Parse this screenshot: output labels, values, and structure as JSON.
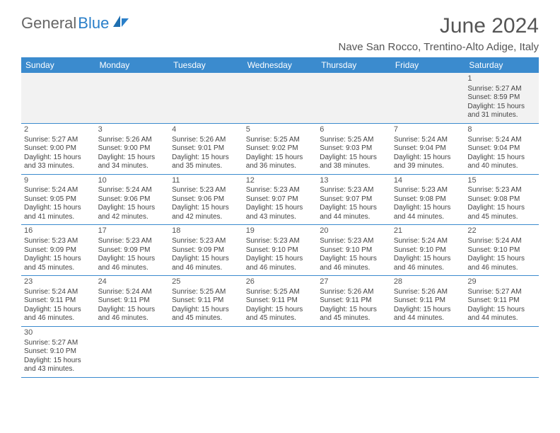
{
  "brand": {
    "part1": "General",
    "part2": "Blue"
  },
  "title": {
    "month": "June 2024",
    "location": "Nave San Rocco, Trentino-Alto Adige, Italy"
  },
  "colors": {
    "headerBg": "#3b8bce",
    "headerText": "#ffffff",
    "border": "#3b8bce",
    "bodyText": "#444444",
    "titleText": "#555555"
  },
  "dayHeaders": [
    "Sunday",
    "Monday",
    "Tuesday",
    "Wednesday",
    "Thursday",
    "Friday",
    "Saturday"
  ],
  "weeks": [
    [
      null,
      null,
      null,
      null,
      null,
      null,
      {
        "n": "1",
        "sr": "Sunrise: 5:27 AM",
        "ss": "Sunset: 8:59 PM",
        "d1": "Daylight: 15 hours",
        "d2": "and 31 minutes."
      }
    ],
    [
      {
        "n": "2",
        "sr": "Sunrise: 5:27 AM",
        "ss": "Sunset: 9:00 PM",
        "d1": "Daylight: 15 hours",
        "d2": "and 33 minutes."
      },
      {
        "n": "3",
        "sr": "Sunrise: 5:26 AM",
        "ss": "Sunset: 9:00 PM",
        "d1": "Daylight: 15 hours",
        "d2": "and 34 minutes."
      },
      {
        "n": "4",
        "sr": "Sunrise: 5:26 AM",
        "ss": "Sunset: 9:01 PM",
        "d1": "Daylight: 15 hours",
        "d2": "and 35 minutes."
      },
      {
        "n": "5",
        "sr": "Sunrise: 5:25 AM",
        "ss": "Sunset: 9:02 PM",
        "d1": "Daylight: 15 hours",
        "d2": "and 36 minutes."
      },
      {
        "n": "6",
        "sr": "Sunrise: 5:25 AM",
        "ss": "Sunset: 9:03 PM",
        "d1": "Daylight: 15 hours",
        "d2": "and 38 minutes."
      },
      {
        "n": "7",
        "sr": "Sunrise: 5:24 AM",
        "ss": "Sunset: 9:04 PM",
        "d1": "Daylight: 15 hours",
        "d2": "and 39 minutes."
      },
      {
        "n": "8",
        "sr": "Sunrise: 5:24 AM",
        "ss": "Sunset: 9:04 PM",
        "d1": "Daylight: 15 hours",
        "d2": "and 40 minutes."
      }
    ],
    [
      {
        "n": "9",
        "sr": "Sunrise: 5:24 AM",
        "ss": "Sunset: 9:05 PM",
        "d1": "Daylight: 15 hours",
        "d2": "and 41 minutes."
      },
      {
        "n": "10",
        "sr": "Sunrise: 5:24 AM",
        "ss": "Sunset: 9:06 PM",
        "d1": "Daylight: 15 hours",
        "d2": "and 42 minutes."
      },
      {
        "n": "11",
        "sr": "Sunrise: 5:23 AM",
        "ss": "Sunset: 9:06 PM",
        "d1": "Daylight: 15 hours",
        "d2": "and 42 minutes."
      },
      {
        "n": "12",
        "sr": "Sunrise: 5:23 AM",
        "ss": "Sunset: 9:07 PM",
        "d1": "Daylight: 15 hours",
        "d2": "and 43 minutes."
      },
      {
        "n": "13",
        "sr": "Sunrise: 5:23 AM",
        "ss": "Sunset: 9:07 PM",
        "d1": "Daylight: 15 hours",
        "d2": "and 44 minutes."
      },
      {
        "n": "14",
        "sr": "Sunrise: 5:23 AM",
        "ss": "Sunset: 9:08 PM",
        "d1": "Daylight: 15 hours",
        "d2": "and 44 minutes."
      },
      {
        "n": "15",
        "sr": "Sunrise: 5:23 AM",
        "ss": "Sunset: 9:08 PM",
        "d1": "Daylight: 15 hours",
        "d2": "and 45 minutes."
      }
    ],
    [
      {
        "n": "16",
        "sr": "Sunrise: 5:23 AM",
        "ss": "Sunset: 9:09 PM",
        "d1": "Daylight: 15 hours",
        "d2": "and 45 minutes."
      },
      {
        "n": "17",
        "sr": "Sunrise: 5:23 AM",
        "ss": "Sunset: 9:09 PM",
        "d1": "Daylight: 15 hours",
        "d2": "and 46 minutes."
      },
      {
        "n": "18",
        "sr": "Sunrise: 5:23 AM",
        "ss": "Sunset: 9:09 PM",
        "d1": "Daylight: 15 hours",
        "d2": "and 46 minutes."
      },
      {
        "n": "19",
        "sr": "Sunrise: 5:23 AM",
        "ss": "Sunset: 9:10 PM",
        "d1": "Daylight: 15 hours",
        "d2": "and 46 minutes."
      },
      {
        "n": "20",
        "sr": "Sunrise: 5:23 AM",
        "ss": "Sunset: 9:10 PM",
        "d1": "Daylight: 15 hours",
        "d2": "and 46 minutes."
      },
      {
        "n": "21",
        "sr": "Sunrise: 5:24 AM",
        "ss": "Sunset: 9:10 PM",
        "d1": "Daylight: 15 hours",
        "d2": "and 46 minutes."
      },
      {
        "n": "22",
        "sr": "Sunrise: 5:24 AM",
        "ss": "Sunset: 9:10 PM",
        "d1": "Daylight: 15 hours",
        "d2": "and 46 minutes."
      }
    ],
    [
      {
        "n": "23",
        "sr": "Sunrise: 5:24 AM",
        "ss": "Sunset: 9:11 PM",
        "d1": "Daylight: 15 hours",
        "d2": "and 46 minutes."
      },
      {
        "n": "24",
        "sr": "Sunrise: 5:24 AM",
        "ss": "Sunset: 9:11 PM",
        "d1": "Daylight: 15 hours",
        "d2": "and 46 minutes."
      },
      {
        "n": "25",
        "sr": "Sunrise: 5:25 AM",
        "ss": "Sunset: 9:11 PM",
        "d1": "Daylight: 15 hours",
        "d2": "and 45 minutes."
      },
      {
        "n": "26",
        "sr": "Sunrise: 5:25 AM",
        "ss": "Sunset: 9:11 PM",
        "d1": "Daylight: 15 hours",
        "d2": "and 45 minutes."
      },
      {
        "n": "27",
        "sr": "Sunrise: 5:26 AM",
        "ss": "Sunset: 9:11 PM",
        "d1": "Daylight: 15 hours",
        "d2": "and 45 minutes."
      },
      {
        "n": "28",
        "sr": "Sunrise: 5:26 AM",
        "ss": "Sunset: 9:11 PM",
        "d1": "Daylight: 15 hours",
        "d2": "and 44 minutes."
      },
      {
        "n": "29",
        "sr": "Sunrise: 5:27 AM",
        "ss": "Sunset: 9:11 PM",
        "d1": "Daylight: 15 hours",
        "d2": "and 44 minutes."
      }
    ],
    [
      {
        "n": "30",
        "sr": "Sunrise: 5:27 AM",
        "ss": "Sunset: 9:10 PM",
        "d1": "Daylight: 15 hours",
        "d2": "and 43 minutes."
      },
      null,
      null,
      null,
      null,
      null,
      null
    ]
  ]
}
